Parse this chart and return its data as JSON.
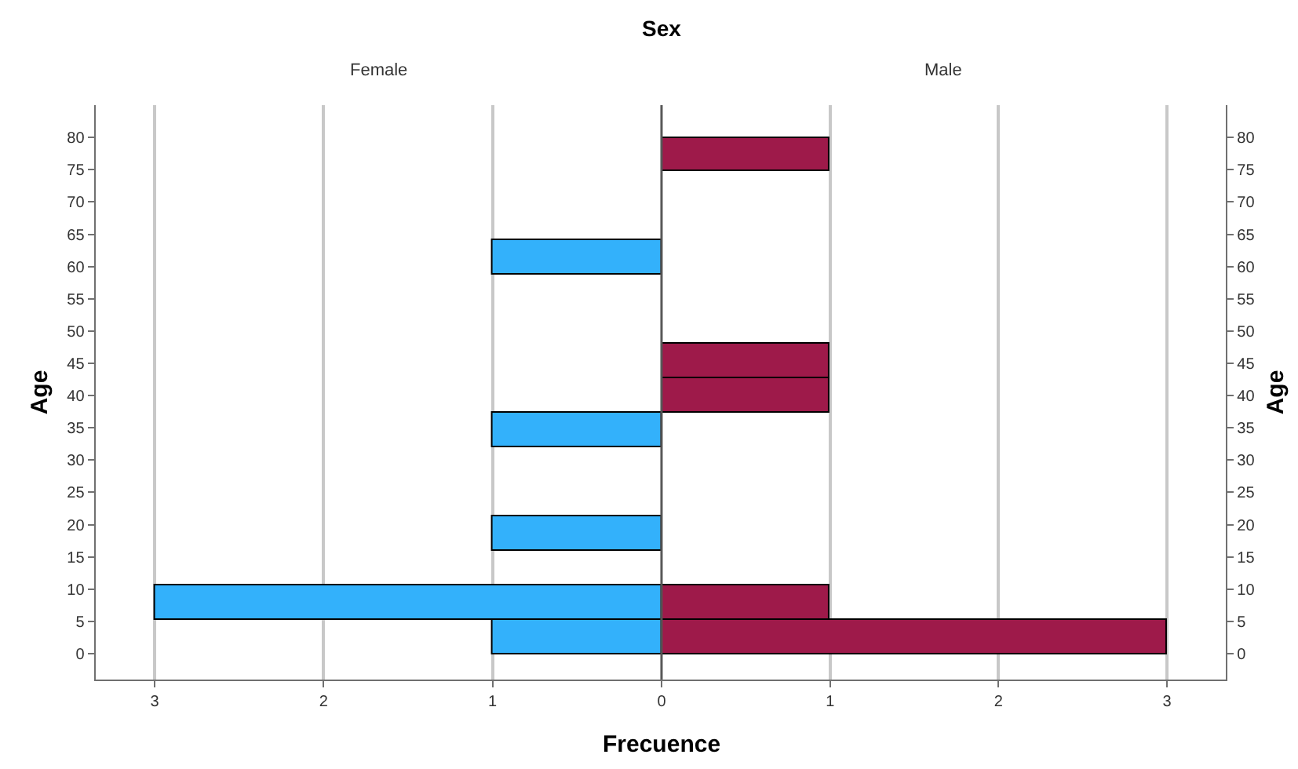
{
  "chart_data": [
    {
      "type": "histogram",
      "orientation": "horizontal",
      "title": "Female",
      "ylabel": "Age",
      "xlabel": "Frecuence",
      "annotations": [
        "Sex"
      ],
      "bins": [
        0,
        5.3,
        10.7,
        16,
        21.3,
        32,
        37.3,
        58.7,
        64
      ],
      "values": [
        1,
        3,
        0,
        1,
        0,
        1,
        0,
        1
      ],
      "color": "#33b1fb",
      "xlim": [
        3.35,
        0
      ],
      "xticks": [
        3,
        2,
        1
      ],
      "ylim": [
        -4,
        85
      ],
      "yticks": [
        0,
        5,
        10,
        15,
        20,
        25,
        30,
        35,
        40,
        45,
        50,
        55,
        60,
        65,
        70,
        75,
        80
      ],
      "grid": "x"
    },
    {
      "type": "histogram",
      "orientation": "horizontal",
      "title": "Male",
      "ylabel": "Age",
      "bins": [
        0,
        5.3,
        10.7,
        37.3,
        42.7,
        48,
        74.7,
        80
      ],
      "values": [
        3,
        1,
        0,
        1,
        1,
        0,
        1
      ],
      "color": "#9e1a4a",
      "xlim": [
        0,
        3.35
      ],
      "xticks": [
        0,
        1,
        2,
        3
      ],
      "ylim": [
        -4,
        85
      ],
      "yticks": [
        0,
        5,
        10,
        15,
        20,
        25,
        30,
        35,
        40,
        45,
        50,
        55,
        60,
        65,
        70,
        75,
        80
      ],
      "grid": "x"
    }
  ]
}
